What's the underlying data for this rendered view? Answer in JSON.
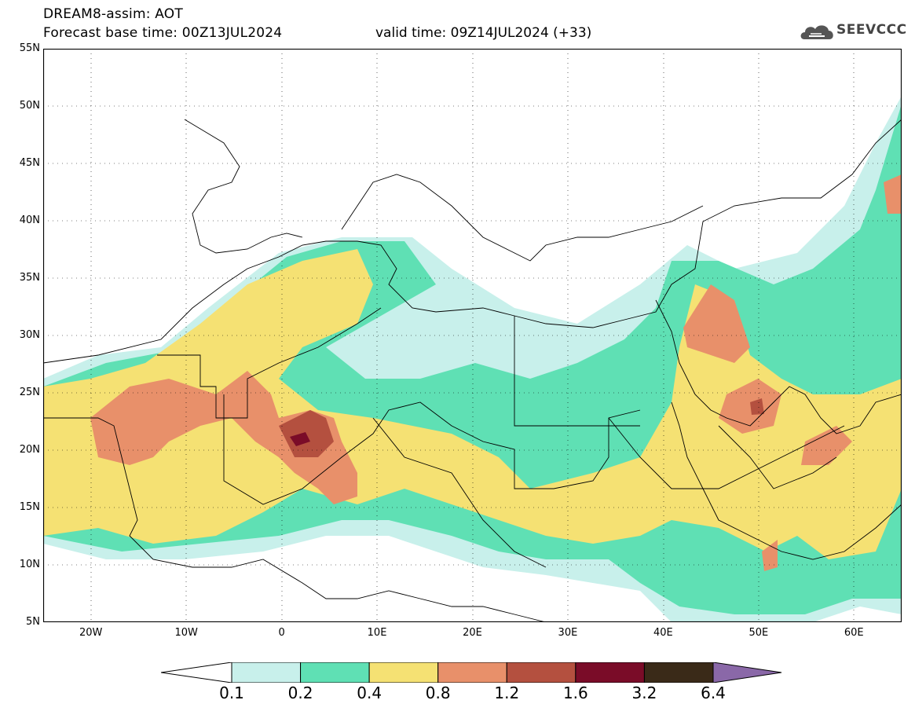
{
  "header": {
    "title": "DREAM8-assim: AOT",
    "base_time": "Forecast base time: 00Z13JUL2024",
    "valid_time": "valid time: 09Z14JUL2024 (+33)"
  },
  "logo": {
    "text": "SEEVCCC",
    "icon": "cloud-icon"
  },
  "map": {
    "lat_labels": [
      "55N",
      "50N",
      "45N",
      "40N",
      "35N",
      "30N",
      "25N",
      "20N",
      "15N",
      "10N",
      "5N"
    ],
    "lon_labels": [
      "20W",
      "10W",
      "0",
      "10E",
      "20E",
      "30E",
      "40E",
      "50E",
      "60E"
    ],
    "lon_range": [
      -25,
      65
    ],
    "lat_range": [
      5,
      55
    ]
  },
  "colorbar": {
    "labels": [
      "0.1",
      "0.2",
      "0.4",
      "0.8",
      "1.2",
      "1.6",
      "3.2",
      "6.4"
    ],
    "colors": [
      "#c8f0eb",
      "#5fe0b4",
      "#f5e173",
      "#e8906a",
      "#b4503f",
      "#7a0c28",
      "#3a2a18",
      "#8a68a8"
    ]
  }
}
